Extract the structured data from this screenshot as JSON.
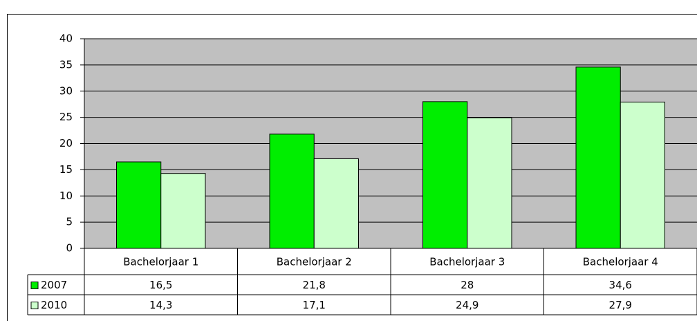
{
  "chart_data": {
    "type": "bar",
    "categories": [
      "Bachelorjaar 1",
      "Bachelorjaar 2",
      "Bachelorjaar 3",
      "Bachelorjaar 4"
    ],
    "series": [
      {
        "name": "2007",
        "color": "#00ee00",
        "values": [
          16.5,
          21.8,
          28,
          34.6
        ],
        "value_labels": [
          "16,5",
          "21,8",
          "28",
          "34,6"
        ]
      },
      {
        "name": "2010",
        "color": "#ccffcc",
        "values": [
          14.3,
          17.1,
          24.9,
          27.9
        ],
        "value_labels": [
          "14,3",
          "17,1",
          "24,9",
          "27,9"
        ]
      }
    ],
    "ylim": [
      0,
      40
    ],
    "yticks": [
      0,
      5,
      10,
      15,
      20,
      25,
      30,
      35,
      40
    ],
    "grid": true,
    "plot_background": "#c0c0c0"
  }
}
